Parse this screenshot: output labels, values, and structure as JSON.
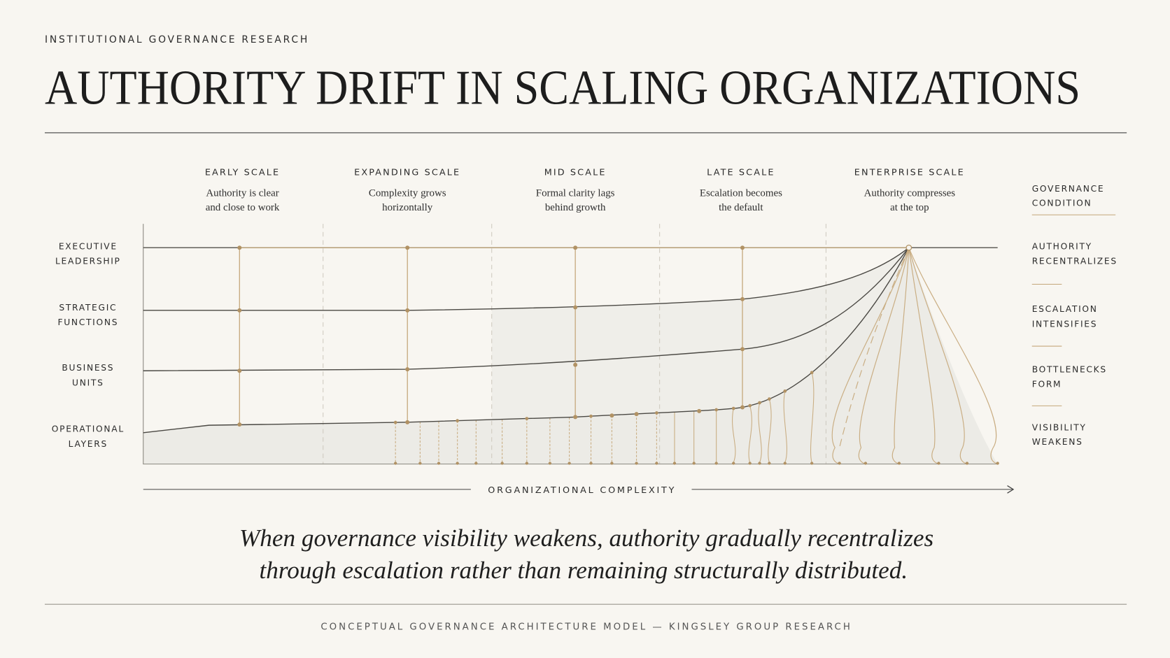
{
  "header": {
    "eyebrow": "INSTITUTIONAL GOVERNANCE RESEARCH",
    "title": "AUTHORITY DRIFT IN SCALING ORGANIZATIONS"
  },
  "stages": [
    {
      "label": "EARLY SCALE",
      "description": [
        "Authority is clear",
        "and close to work"
      ]
    },
    {
      "label": "EXPANDING SCALE",
      "description": [
        "Complexity grows",
        "horizontally"
      ]
    },
    {
      "label": "MID SCALE",
      "description": [
        "Formal clarity lags",
        "behind growth"
      ]
    },
    {
      "label": "LATE SCALE",
      "description": [
        "Escalation becomes",
        "the default"
      ]
    },
    {
      "label": "ENTERPRISE SCALE",
      "description": [
        "Authority compresses",
        "at the top"
      ]
    }
  ],
  "layers": [
    [
      "EXECUTIVE",
      "LEADERSHIP"
    ],
    [
      "STRATEGIC",
      "FUNCTIONS"
    ],
    [
      "BUSINESS",
      "UNITS"
    ],
    [
      "OPERATIONAL",
      "LAYERS"
    ]
  ],
  "conditions": {
    "title": [
      "GOVERNANCE",
      "CONDITION"
    ],
    "items": [
      [
        "AUTHORITY",
        "RECENTRALIZES"
      ],
      [
        "ESCALATION",
        "INTENSIFIES"
      ],
      [
        "BOTTLENECKS",
        "FORM"
      ],
      [
        "VISIBILITY",
        "WEAKENS"
      ]
    ]
  },
  "axis_label": "ORGANIZATIONAL COMPLEXITY",
  "quote": [
    "When governance visibility weakens, authority gradually recentralizes",
    "through escalation rather than remaining structurally distributed."
  ],
  "footer": "CONCEPTUAL GOVERNANCE ARCHITECTURE MODEL — KINGSLEY GROUP RESEARCH"
}
